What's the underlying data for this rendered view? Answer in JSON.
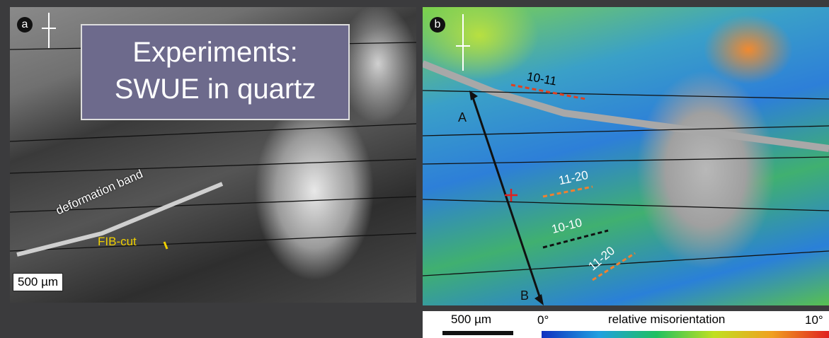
{
  "panel_a": {
    "label": "a",
    "box_title": "Experiments:",
    "box_subtitle": "SWUE in quartz",
    "annotation_band": "deformation band",
    "annotation_fib": "FIB-cut",
    "scale_bar": "500 µm"
  },
  "panel_b": {
    "label": "b",
    "plane_1": "10-11",
    "plane_2": "11-20",
    "plane_3": "10-10",
    "plane_4": "11-20",
    "point_a": "A",
    "point_b": "B"
  },
  "colorbar": {
    "scale_bar": "500 µm",
    "min_label": "0°",
    "title": "relative misorientation",
    "max_label": "10°"
  }
}
